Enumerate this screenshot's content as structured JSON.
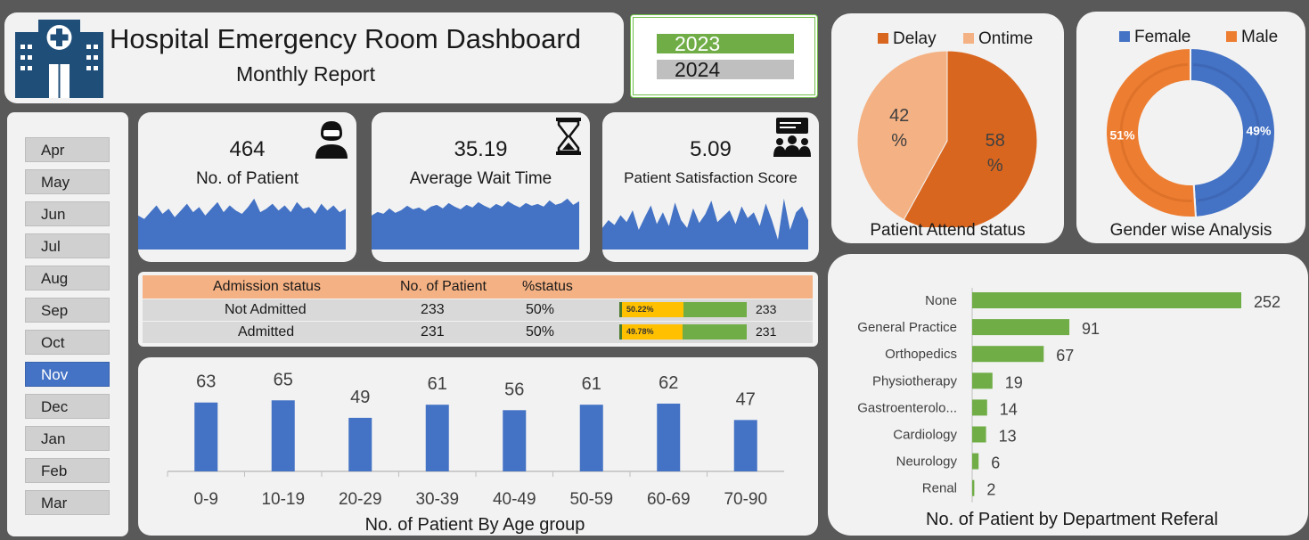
{
  "header": {
    "title": "Hospital Emergency Room Dashboard",
    "subtitle": "Monthly Report",
    "icon": "hospital-building-icon"
  },
  "years": [
    {
      "label": "2023",
      "selected": true
    },
    {
      "label": "2024",
      "selected": false
    }
  ],
  "months": [
    "Apr",
    "May",
    "Jun",
    "Jul",
    "Aug",
    "Sep",
    "Oct",
    "Nov",
    "Dec",
    "Jan",
    "Feb",
    "Mar"
  ],
  "selected_month": "Nov",
  "kpis": {
    "patients": {
      "value": "464",
      "label": "No. of Patient",
      "icon": "patient-person-icon"
    },
    "wait": {
      "value": "35.19",
      "label": "Average Wait Time",
      "icon": "hourglass-icon"
    },
    "satisfaction": {
      "value": "5.09",
      "label": "Patient Satisfaction Score",
      "icon": "group-feedback-icon"
    }
  },
  "admission": {
    "headers": [
      "Admission status",
      "No. of Patient",
      "%status"
    ],
    "rows": [
      {
        "status": "Not Admitted",
        "patients": "233",
        "pct": "50%",
        "bar_label": "50.22%",
        "bar_fraction": 0.5022,
        "bar_value": "233"
      },
      {
        "status": "Admitted",
        "patients": "231",
        "pct": "50%",
        "bar_label": "49.78%",
        "bar_fraction": 0.4978,
        "bar_value": "231"
      }
    ]
  },
  "colors": {
    "blue": "#4472c4",
    "orange": "#ed7d31",
    "green": "#70ad47",
    "peach": "#f4b183",
    "panel": "#f2f2f2",
    "background": "#595959"
  },
  "chart_data": [
    {
      "id": "age",
      "type": "bar",
      "title": "No. of Patient By Age group",
      "categories": [
        "0-9",
        "10-19",
        "20-29",
        "30-39",
        "40-49",
        "50-59",
        "60-69",
        "70-90"
      ],
      "values": [
        63,
        65,
        49,
        61,
        56,
        61,
        62,
        47
      ],
      "ylim": [
        0,
        75
      ],
      "grid": false,
      "color": "#4472c4"
    },
    {
      "id": "attend",
      "type": "pie",
      "title": "Patient Attend status",
      "labels": [
        "Delay",
        "Ontime"
      ],
      "values": [
        58,
        42
      ],
      "value_labels": [
        "58\n%",
        "42\n%"
      ],
      "legend": "top",
      "colors": [
        "#d9661f",
        "#f4b183"
      ]
    },
    {
      "id": "gender",
      "type": "pie",
      "subtype": "doughnut",
      "title": "Gender wise Analysis",
      "labels": [
        "Female",
        "Male"
      ],
      "values": [
        49,
        51
      ],
      "value_labels": [
        "49%",
        "51%"
      ],
      "legend": "top",
      "colors": [
        "#4472c4",
        "#ed7d31"
      ]
    },
    {
      "id": "dept",
      "type": "bar",
      "orientation": "horizontal",
      "title": "No. of Patient by Department Referal",
      "categories": [
        "None",
        "General Practice",
        "Orthopedics",
        "Physiotherapy",
        "Gastroenterolo...",
        "Cardiology",
        "Neurology",
        "Renal"
      ],
      "values": [
        252,
        91,
        67,
        19,
        14,
        13,
        6,
        2
      ],
      "xlim": [
        0,
        252
      ],
      "grid": false,
      "color": "#70ad47"
    },
    {
      "id": "spark-patients",
      "type": "area",
      "values": [
        20,
        18,
        22,
        26,
        21,
        24,
        19,
        23,
        27,
        22,
        25,
        20,
        24,
        28,
        22,
        26,
        23,
        21,
        25,
        30,
        22,
        24,
        27,
        23,
        26,
        22,
        28,
        24,
        25,
        21,
        27,
        23,
        26,
        22,
        24
      ],
      "color": "#4472c4"
    },
    {
      "id": "spark-wait",
      "type": "area",
      "values": [
        38,
        42,
        40,
        46,
        41,
        44,
        49,
        45,
        47,
        43,
        48,
        50,
        46,
        52,
        48,
        45,
        50,
        47,
        53,
        49,
        46,
        51,
        48,
        54,
        50,
        47,
        52,
        49,
        51,
        48,
        55,
        50,
        52,
        57,
        50,
        54
      ],
      "color": "#4472c4"
    },
    {
      "id": "spark-sat",
      "type": "area",
      "values": [
        22,
        30,
        25,
        35,
        28,
        40,
        20,
        33,
        45,
        26,
        38,
        24,
        48,
        30,
        22,
        42,
        27,
        36,
        50,
        28,
        34,
        40,
        26,
        44,
        32,
        38,
        24,
        47,
        30,
        10,
        52,
        20,
        38,
        44,
        30
      ],
      "color": "#4472c4"
    }
  ]
}
